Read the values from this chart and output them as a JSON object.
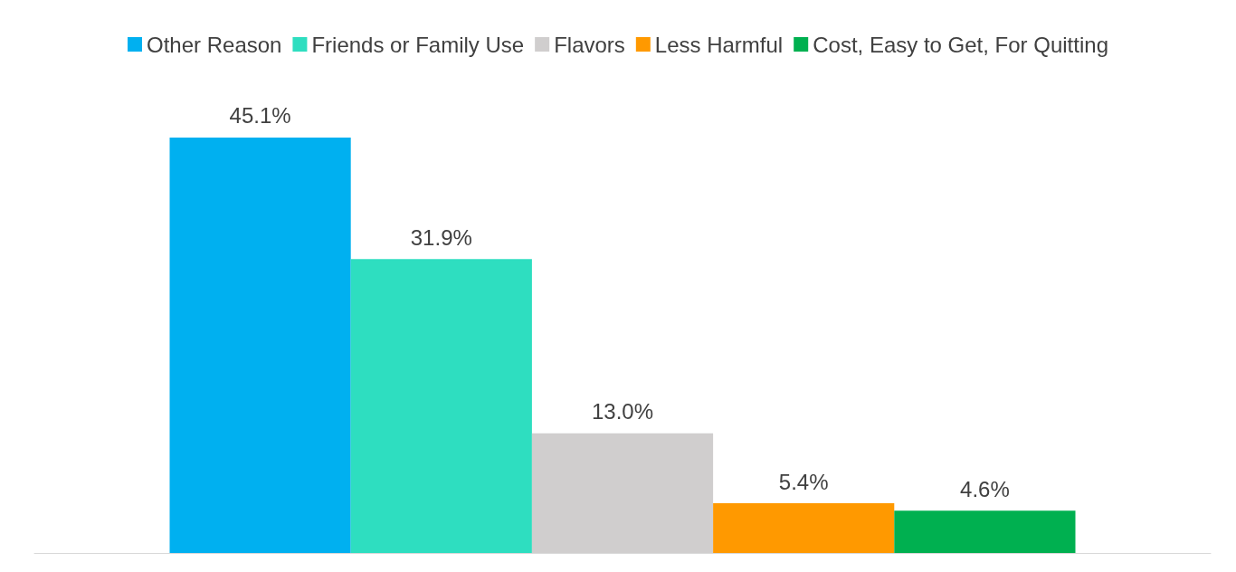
{
  "chart_data": {
    "type": "bar",
    "categories": [
      null
    ],
    "series": [
      {
        "name": "Other Reason",
        "color": "#00b0f0",
        "values": [
          45.1
        ],
        "value_labels": [
          "45.1%"
        ]
      },
      {
        "name": "Friends or Family Use",
        "color": "#2edec0",
        "values": [
          31.9
        ],
        "value_labels": [
          "31.9%"
        ]
      },
      {
        "name": "Flavors",
        "color": "#d0cece",
        "values": [
          13.0
        ],
        "value_labels": [
          "13.0%"
        ]
      },
      {
        "name": "Less Harmful",
        "color": "#ff9900",
        "values": [
          5.4
        ],
        "value_labels": [
          "5.4%"
        ]
      },
      {
        "name": "Cost, Easy to Get, For Quitting",
        "color": "#00b050",
        "values": [
          4.6
        ],
        "value_labels": [
          "4.6%"
        ]
      }
    ],
    "legend": "top"
  }
}
